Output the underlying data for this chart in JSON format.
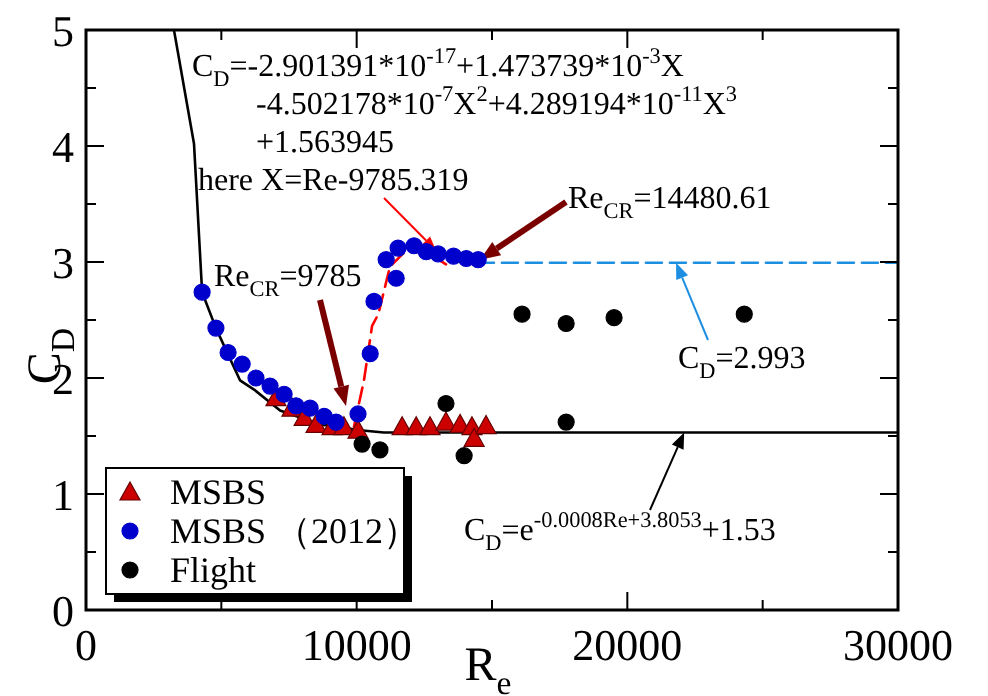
{
  "chart_data": {
    "type": "scatter",
    "xlabel": "R$_{e}$",
    "ylabel": "C$_{D}$",
    "xlim": [
      0,
      30000
    ],
    "ylim": [
      0,
      5
    ],
    "xticks": [
      0,
      {
        "value": 5000,
        "label": null
      },
      10000,
      {
        "value": 15000,
        "label": null
      },
      20000,
      {
        "value": 25000,
        "label": null
      },
      30000
    ],
    "yticks": [
      0,
      {
        "value": 0.5,
        "label": null
      },
      1,
      {
        "value": 1.5,
        "label": null
      },
      2,
      {
        "value": 2.5,
        "label": null
      },
      3,
      {
        "value": 3.5,
        "label": null
      },
      4,
      {
        "value": 4.5,
        "label": null
      },
      5
    ],
    "grid": false,
    "legend": "bottom left",
    "series": [
      {
        "type": "line",
        "color": "#000000",
        "marker": "none",
        "line_style": "solid",
        "x": [
          3250,
          3990,
          4290,
          4800,
          5690,
          6210,
          7170,
          8650,
          10130,
          11000,
          30000
        ],
        "values": [
          5.0,
          4.02,
          2.74,
          2.43,
          1.98,
          1.9,
          1.72,
          1.6,
          1.55,
          1.53,
          1.53
        ]
      },
      {
        "type": "line",
        "color": "#ff0000",
        "marker": "none",
        "line_style": "dashed",
        "x": [
          9900,
          10270,
          10570,
          10800,
          11230,
          11830,
          12570,
          13300
        ],
        "values": [
          1.58,
          1.98,
          2.45,
          2.55,
          2.96,
          3.1,
          3.09,
          2.98
        ]
      },
      {
        "type": "line",
        "color": "#1e8fe0",
        "marker": "none",
        "line_style": "dashed",
        "x": [
          14480,
          30000
        ],
        "values": [
          2.993,
          2.993
        ]
      },
      {
        "name": "MSBS",
        "color": "#cc0000",
        "marker": "triangle",
        "x": [
          7020,
          7610,
          8060,
          8500,
          9090,
          9530,
          10050,
          11680,
          12200,
          12710,
          13300,
          13820,
          14260,
          14340,
          14780
        ],
        "values": [
          1.83,
          1.74,
          1.66,
          1.6,
          1.58,
          1.58,
          1.55,
          1.58,
          1.58,
          1.58,
          1.62,
          1.6,
          1.58,
          1.48,
          1.59
        ]
      },
      {
        "name": "MSBS （2012）",
        "color": "#0000cc",
        "marker": "circle",
        "x": [
          4290,
          4800,
          5250,
          5770,
          6280,
          6800,
          7320,
          7760,
          8280,
          8800,
          9240,
          10050,
          10500,
          10640,
          11090,
          11460,
          11530,
          12120,
          12570,
          13010,
          13580,
          14050,
          14490
        ],
        "values": [
          2.74,
          2.43,
          2.22,
          2.12,
          2.0,
          1.93,
          1.86,
          1.76,
          1.74,
          1.67,
          1.62,
          1.69,
          2.21,
          2.66,
          3.02,
          2.86,
          3.12,
          3.14,
          3.09,
          3.07,
          3.05,
          3.03,
          3.02
        ]
      },
      {
        "name": "Flight",
        "color": "#000000",
        "marker": "circle",
        "x": [
          10200,
          10860,
          13300,
          13970,
          16110,
          17740,
          19510,
          24320,
          17740
        ],
        "values": [
          1.43,
          1.38,
          1.78,
          1.33,
          2.55,
          2.47,
          2.52,
          2.55,
          1.62
        ]
      }
    ],
    "annotations": [
      "C$_{D}$=-2.901391*10$^{-17}$+1.473739*10$^{-3}$X",
      "-4.502178*10$^{-7}$X$^{2}$+4.289194*10$^{-11}$X$^{3}$",
      "+1.563945",
      {
        "text": "here X=Re-9785.319",
        "x": 12930,
        "y": 3.1
      },
      {
        "text": "Re$_{CR}$=14480.61",
        "x": 14560,
        "y": 3.02
      },
      "Re$_{CR}$=9785",
      {
        "text": "C$_{D}$=2.993",
        "x": 21800,
        "y": 2.993
      },
      {
        "text": "C$_{D}$=e$^{-0.0008Re+3.8053}$+1.53",
        "x": 22100,
        "y": 1.53
      }
    ]
  }
}
